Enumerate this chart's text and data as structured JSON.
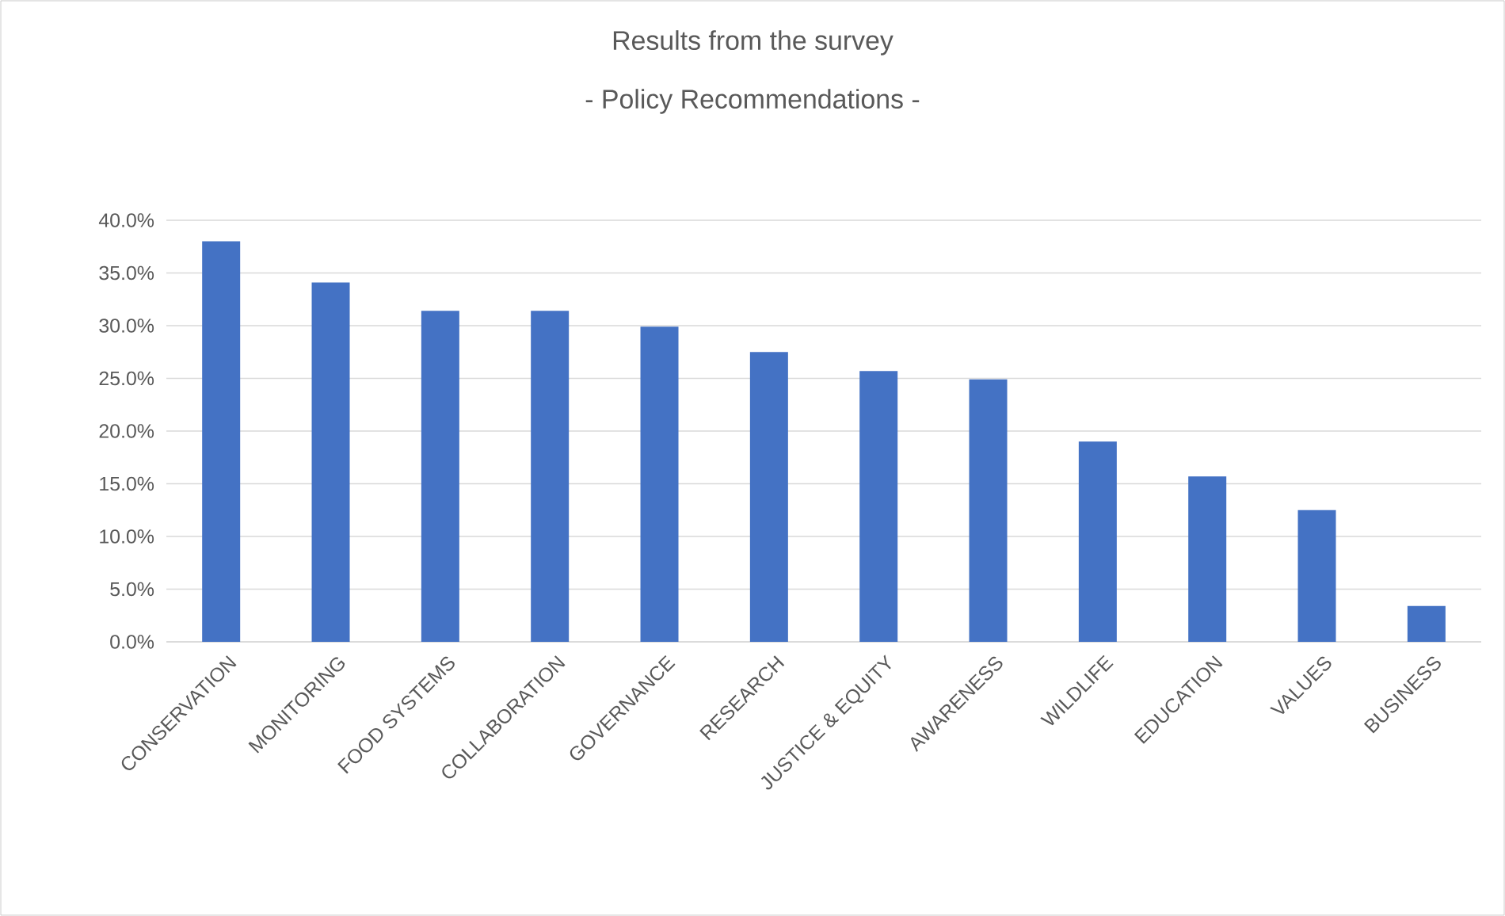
{
  "chart_data": {
    "type": "bar",
    "title": "Results from the survey",
    "subtitle": "- Policy Recommendations -",
    "categories": [
      "CONSERVATION",
      "MONITORING",
      "FOOD SYSTEMS",
      "COLLABORATION",
      "GOVERNANCE",
      "RESEARCH",
      "JUSTICE & EQUITY",
      "AWARENESS",
      "WILDLIFE",
      "EDUCATION",
      "VALUES",
      "BUSINESS"
    ],
    "values": [
      38.0,
      34.1,
      31.4,
      31.4,
      29.9,
      27.5,
      25.7,
      24.9,
      19.0,
      15.7,
      12.5,
      3.4
    ],
    "color": "#4472c4",
    "ylim": [
      0,
      40
    ],
    "yticks": [
      {
        "value": 0,
        "label": "0.0%"
      },
      {
        "value": 5,
        "label": "5.0%"
      },
      {
        "value": 10,
        "label": "10.0%"
      },
      {
        "value": 15,
        "label": "15.0%"
      },
      {
        "value": 20,
        "label": "20.0%"
      },
      {
        "value": 25,
        "label": "25.0%"
      },
      {
        "value": 30,
        "label": "30.0%"
      },
      {
        "value": 35,
        "label": "35.0%"
      },
      {
        "value": 40,
        "label": "40.0%"
      }
    ],
    "grid": "y"
  }
}
